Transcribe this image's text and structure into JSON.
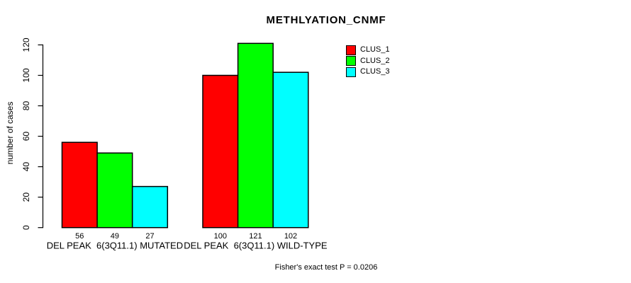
{
  "chart_data": {
    "type": "bar",
    "title": "METHLYATION_CNMF",
    "xlabel": "",
    "ylabel": "number of cases",
    "ylim": [
      0,
      120
    ],
    "yticks": [
      0,
      20,
      40,
      60,
      80,
      100,
      120
    ],
    "grid": false,
    "legend_position": "top-right",
    "categories": [
      "DEL PEAK  6(3Q11.1) MUTATED",
      "DEL PEAK  6(3Q11.1) WILD-TYPE"
    ],
    "series": [
      {
        "name": "CLUS_1",
        "color": "#FF0000",
        "values": [
          56,
          100
        ]
      },
      {
        "name": "CLUS_2",
        "color": "#00FF00",
        "values": [
          49,
          121
        ]
      },
      {
        "name": "CLUS_3",
        "color": "#00FFFF",
        "values": [
          27,
          102
        ]
      }
    ],
    "show_bar_values": true,
    "annotation": "Fisher's exact test P = 0.0206"
  },
  "colors": {
    "background": "#FFFFFF",
    "text": "#000000",
    "axis": "#000000",
    "bar_border": "#000000"
  }
}
